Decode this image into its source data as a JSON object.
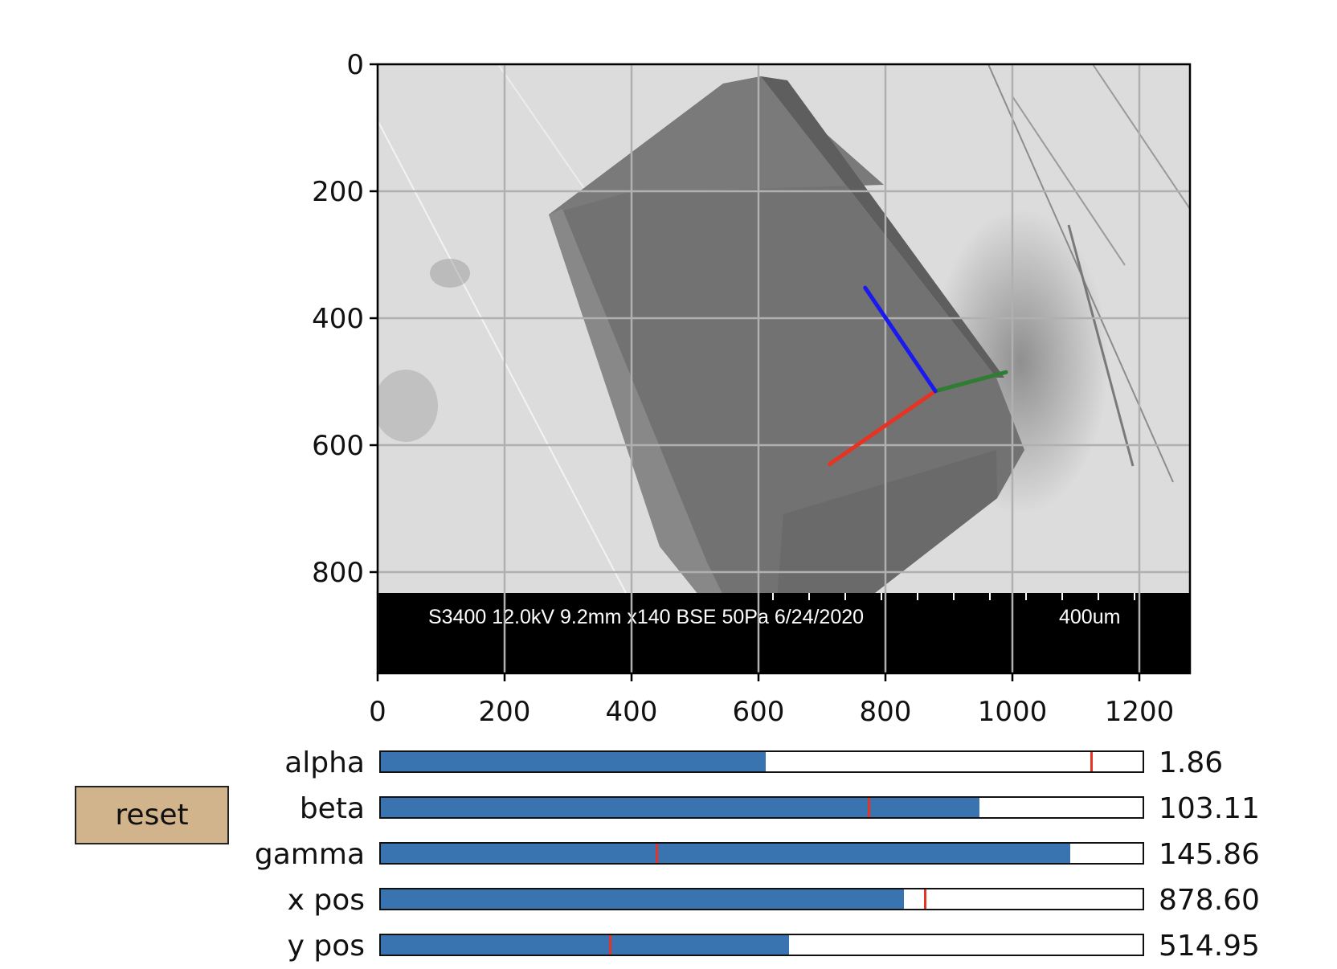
{
  "plot": {
    "x_ticks": [
      "0",
      "200",
      "400",
      "600",
      "800",
      "1000",
      "1200"
    ],
    "y_ticks": [
      "0",
      "200",
      "400",
      "600",
      "800"
    ],
    "x_range": [
      0,
      1280
    ],
    "y_range": [
      960,
      0
    ],
    "grid": true,
    "image": {
      "caption": "S3400 12.0kV 9.2mm x140 BSE 50Pa 6/24/2020",
      "scale_label": "400um"
    },
    "axes_overlay": {
      "origin": [
        878.6,
        514.95
      ],
      "red_end": [
        712,
        630
      ],
      "green_end": [
        990,
        485
      ],
      "blue_end": [
        768,
        352
      ],
      "colors": {
        "red": "#e53324",
        "green": "#2e7d32",
        "blue": "#1a1aee"
      }
    }
  },
  "reset_button": {
    "label": "reset"
  },
  "sliders": [
    {
      "label": "alpha",
      "value_text": "1.86",
      "fill": 0.505,
      "marker": 0.933
    },
    {
      "label": "beta",
      "value_text": "103.11",
      "fill": 0.786,
      "marker": 0.64
    },
    {
      "label": "gamma",
      "value_text": "145.86",
      "fill": 0.905,
      "marker": 0.362
    },
    {
      "label": "x pos",
      "value_text": "878.60",
      "fill": 0.687,
      "marker": 0.714
    },
    {
      "label": "y pos",
      "value_text": "514.95",
      "fill": 0.536,
      "marker": 0.301
    }
  ],
  "colors": {
    "slider_fill": "#3a74b0",
    "slider_marker": "#e53324",
    "reset_bg": "#d2b48c",
    "grid": "#b0b0b0"
  }
}
